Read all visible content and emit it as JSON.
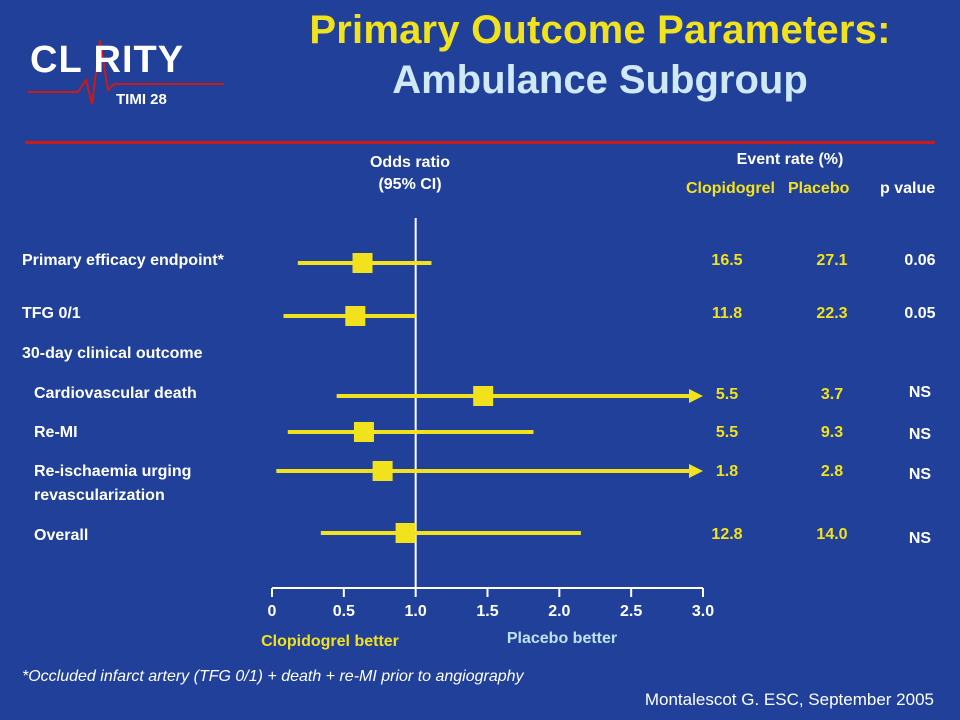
{
  "header": {
    "logo_text": "CL RITY",
    "logo_sub": "TIMI 28",
    "title_line1": "Primary Outcome Parameters:",
    "title_line2": "Ambulance Subgroup"
  },
  "columns": {
    "odds_ratio_line1": "Odds ratio",
    "odds_ratio_line2": "(95% CI)",
    "event_rate": "Event rate (%)",
    "clopidogrel": "Clopidogrel",
    "placebo": "Placebo",
    "p_value": "p value"
  },
  "chart_data": {
    "type": "forest",
    "xlim": [
      0,
      3.0
    ],
    "reference_line": 1.0,
    "x_ticks": [
      "0",
      "0.5",
      "1.0",
      "1.5",
      "2.0",
      "2.5",
      "3.0"
    ],
    "x_tick_values": [
      0,
      0.5,
      1.0,
      1.5,
      2.0,
      2.5,
      3.0
    ],
    "left_label": "Clopidogrel better",
    "right_label": "Placebo better",
    "section_header": "30-day clinical outcome",
    "rows": [
      {
        "label": "Primary efficacy endpoint*",
        "indent": false,
        "or": 0.63,
        "lo": 0.18,
        "hi": 1.11,
        "arrow": false,
        "clopidogrel": "16.5",
        "placebo": "27.1",
        "p": "0.06"
      },
      {
        "label": "TFG 0/1",
        "indent": false,
        "or": 0.58,
        "lo": 0.08,
        "hi": 1.0,
        "arrow": false,
        "clopidogrel": "11.8",
        "placebo": "22.3",
        "p": "0.05"
      },
      {
        "label": "Cardiovascular death",
        "indent": true,
        "or": 1.47,
        "lo": 0.45,
        "hi": 3.0,
        "arrow": true,
        "clopidogrel": "5.5",
        "placebo": "3.7",
        "p": "NS"
      },
      {
        "label": "Re-MI",
        "indent": true,
        "or": 0.64,
        "lo": 0.11,
        "hi": 1.82,
        "arrow": false,
        "clopidogrel": "5.5",
        "placebo": "9.3",
        "p": "NS"
      },
      {
        "label": "Re-ischaemia urging",
        "label2": "revascularization",
        "indent": true,
        "or": 0.77,
        "lo": 0.03,
        "hi": 3.0,
        "arrow": true,
        "clopidogrel": "1.8",
        "placebo": "2.8",
        "p": "NS"
      },
      {
        "label": "Overall",
        "indent": true,
        "or": 0.93,
        "lo": 0.34,
        "hi": 2.15,
        "arrow": false,
        "clopidogrel": "12.8",
        "placebo": "14.0",
        "p": "NS"
      }
    ]
  },
  "colors": {
    "background": "#20409a",
    "accent": "#f2e21d",
    "title2": "#cfe9f6",
    "rule": "#cc1a1a",
    "right_label": "#bfe3f4"
  },
  "footer": {
    "footnote": "*Occluded infarct artery (TFG 0/1) + death + re-MI prior to angiography",
    "citation": "Montalescot G. ESC, September 2005"
  }
}
